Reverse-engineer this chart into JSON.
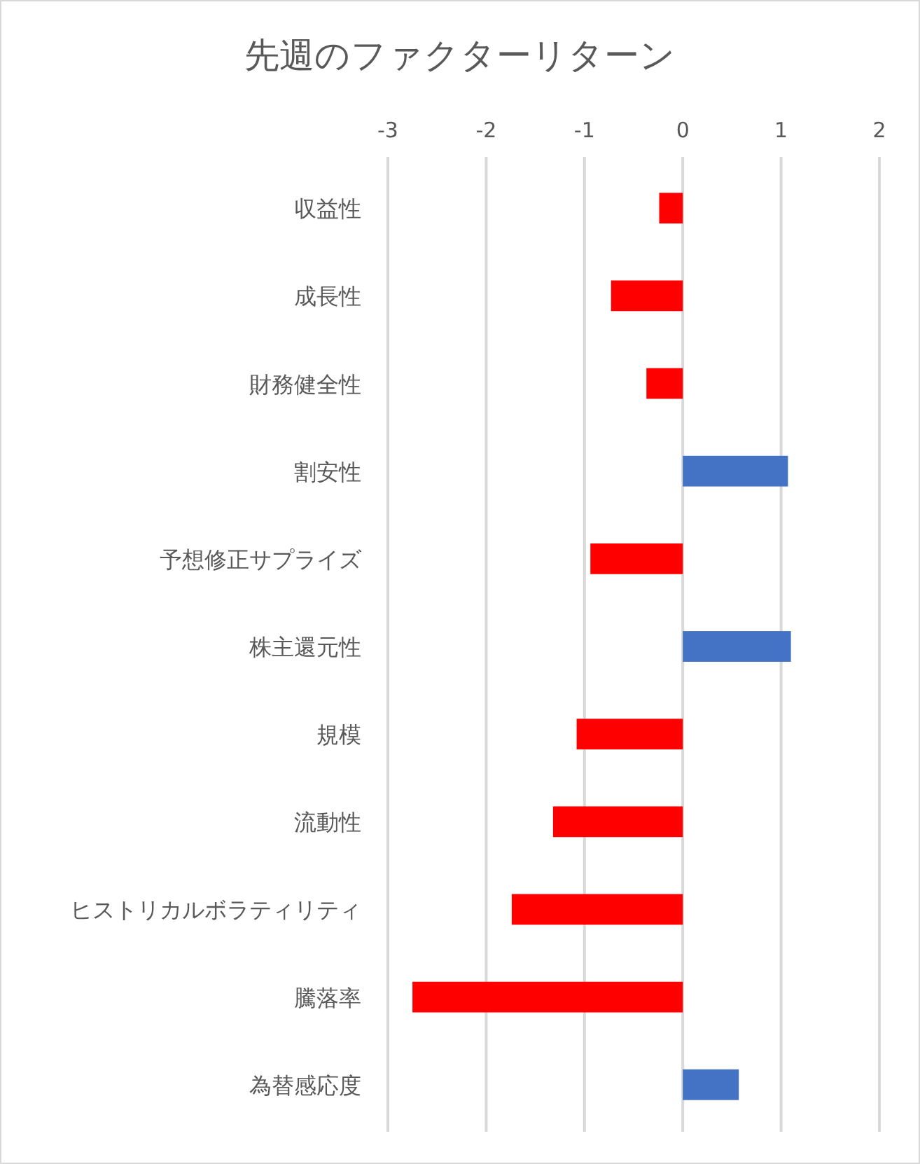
{
  "chart_data": {
    "type": "bar",
    "orientation": "horizontal",
    "title": "先週のファクターリターン",
    "categories": [
      "収益性",
      "成長性",
      "財務健全性",
      "割安性",
      "予想修正サプライズ",
      "株主還元性",
      "規模",
      "流動性",
      "ヒストリカルボラティリティ",
      "騰落率",
      "為替感応度"
    ],
    "values": [
      -0.24,
      -0.73,
      -0.37,
      1.07,
      -0.94,
      1.1,
      -1.08,
      -1.32,
      -1.74,
      -2.75,
      0.57
    ],
    "colors": [
      "#ff0000",
      "#ff0000",
      "#ff0000",
      "#4472c4",
      "#ff0000",
      "#4472c4",
      "#ff0000",
      "#ff0000",
      "#ff0000",
      "#ff0000",
      "#4472c4"
    ],
    "xlim": [
      -3,
      2
    ],
    "xticks": [
      -3,
      -2,
      -1,
      0,
      1,
      2
    ],
    "grid": "x"
  }
}
